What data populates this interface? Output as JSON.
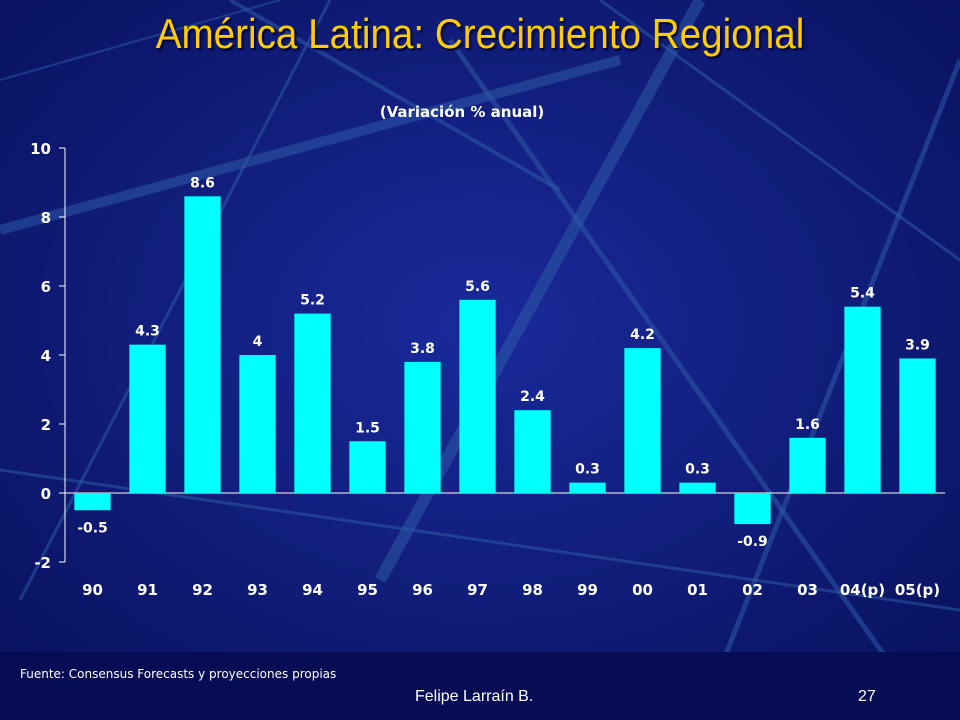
{
  "slide": {
    "title": "América Latina: Crecimiento Regional",
    "source": "Fuente: Consensus Forecasts y proyecciones propias",
    "author": "Felipe Larraín B.",
    "page_number": "27"
  },
  "colors": {
    "background": "#0a1670",
    "title": "#ffcc00",
    "bar": "#00ffff",
    "text": "#ffffff"
  },
  "chart_data": {
    "type": "bar",
    "title": "(Variación % anual)",
    "xlabel": "",
    "ylabel": "",
    "categories": [
      "90",
      "91",
      "92",
      "93",
      "94",
      "95",
      "96",
      "97",
      "98",
      "99",
      "00",
      "01",
      "02",
      "03",
      "04(p)",
      "05(p)"
    ],
    "values": [
      -0.5,
      4.3,
      8.6,
      4,
      5.2,
      1.5,
      3.8,
      5.6,
      2.4,
      0.3,
      4.2,
      0.3,
      -0.9,
      1.6,
      5.4,
      3.9
    ],
    "data_labels": [
      "-0.5",
      "4.3",
      "8.6",
      "4",
      "5.2",
      "1.5",
      "3.8",
      "5.6",
      "2.4",
      "0.3",
      "4.2",
      "0.3",
      "-0.9",
      "1.6",
      "5.4",
      "3.9"
    ],
    "ylim": [
      -2,
      10
    ],
    "yticks": [
      -2,
      0,
      2,
      4,
      6,
      8,
      10
    ],
    "grid": false,
    "legend": "none"
  }
}
